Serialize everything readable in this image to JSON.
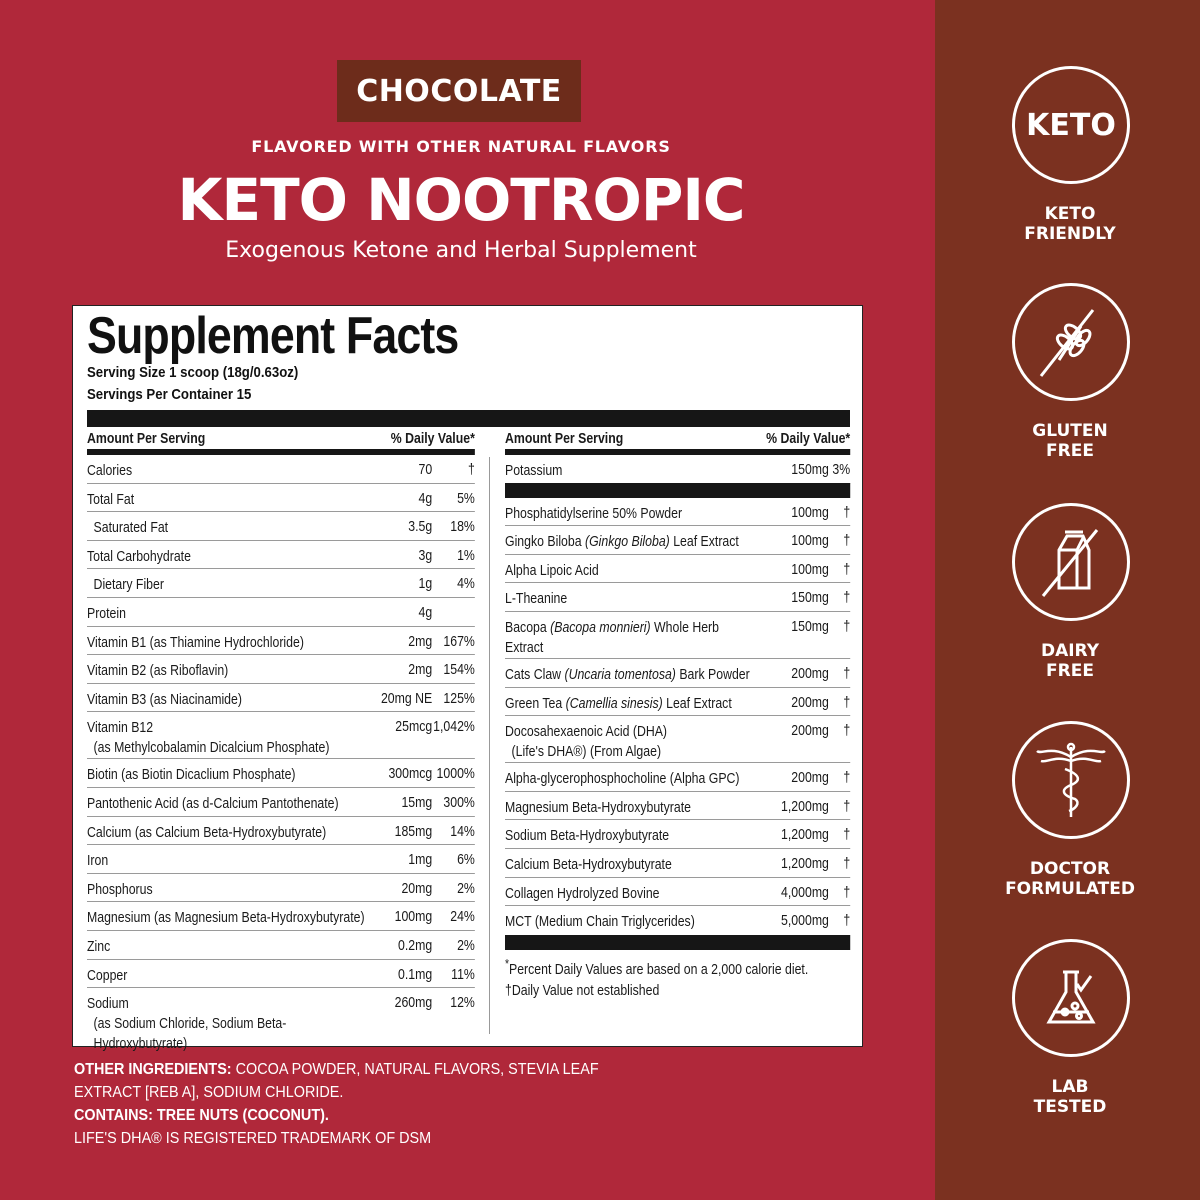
{
  "colors": {
    "background": "#b0283a",
    "sidebar": "#7b3120",
    "badge": "#6d2c1b"
  },
  "header": {
    "flavor": "CHOCOLATE",
    "flavored_note": "FLAVORED WITH OTHER NATURAL FLAVORS",
    "title": "KETO NOOTROPIC",
    "subtitle": "Exogenous Ketone and Herbal Supplement"
  },
  "facts": {
    "title": "Supplement Facts",
    "serving_size": "Serving Size 1 scoop (18g/0.63oz)",
    "servings_per_container": "Servings Per Container 15",
    "header_amount": "Amount Per Serving",
    "header_dv": "% Daily Value*",
    "left": [
      {
        "name": "Calories",
        "amount": "70",
        "dv": "†"
      },
      {
        "name": "Total Fat",
        "amount": "4g",
        "dv": "5%"
      },
      {
        "name": "Saturated Fat",
        "amount": "3.5g",
        "dv": "18%",
        "indent": true
      },
      {
        "name": "Total Carbohydrate",
        "amount": "3g",
        "dv": "1%"
      },
      {
        "name": "Dietary Fiber",
        "amount": "1g",
        "dv": "4%",
        "indent": true
      },
      {
        "name": "Protein",
        "amount": "4g",
        "dv": ""
      },
      {
        "name": "Vitamin B1 (as Thiamine Hydrochloride)",
        "amount": "2mg",
        "dv": "167%"
      },
      {
        "name": "Vitamin B2 (as Riboflavin)",
        "amount": "2mg",
        "dv": "154%"
      },
      {
        "name": "Vitamin B3 (as Niacinamide)",
        "amount": "20mg NE",
        "dv": "125%"
      },
      {
        "name": "Vitamin B12",
        "name2": "(as Methylcobalamin Dicalcium Phosphate)",
        "amount": "25mcg",
        "dv": "1,042%"
      },
      {
        "name": "Biotin (as Biotin Dicaclium Phosphate)",
        "amount": "300mcg",
        "dv": "1000%"
      },
      {
        "name": "Pantothenic Acid (as d-Calcium Pantothenate)",
        "amount": "15mg",
        "dv": "300%"
      },
      {
        "name": "Calcium (as Calcium Beta-Hydroxybutyrate)",
        "amount": "185mg",
        "dv": "14%"
      },
      {
        "name": "Iron",
        "amount": "1mg",
        "dv": "6%"
      },
      {
        "name": "Phosphorus",
        "amount": "20mg",
        "dv": "2%"
      },
      {
        "name": "Magnesium (as Magnesium Beta-Hydroxybutyrate)",
        "amount": "100mg",
        "dv": "24%"
      },
      {
        "name": "Zinc",
        "amount": "0.2mg",
        "dv": "2%"
      },
      {
        "name": "Copper",
        "amount": "0.1mg",
        "dv": "11%"
      },
      {
        "name": "Sodium",
        "name2": "(as Sodium Chloride, Sodium Beta-Hydroxybutyrate)",
        "amount": "260mg",
        "dv": "12%",
        "last": true
      }
    ],
    "right_top": [
      {
        "name": "Potassium",
        "amount": "150mg",
        "dv": "3%"
      }
    ],
    "right": [
      {
        "name": "Phosphatidylserine 50% Powder",
        "amount": "100mg",
        "dv": "†"
      },
      {
        "name": "Gingko Biloba ",
        "italic": "(Ginkgo Biloba)",
        "post": " Leaf Extract",
        "amount": "100mg",
        "dv": "†"
      },
      {
        "name": "Alpha Lipoic Acid",
        "amount": "100mg",
        "dv": "†"
      },
      {
        "name": "L-Theanine",
        "amount": "150mg",
        "dv": "†"
      },
      {
        "name": "Bacopa ",
        "italic": "(Bacopa monnieri)",
        "post": " Whole Herb Extract",
        "amount": "150mg",
        "dv": "†"
      },
      {
        "name": "Cats Claw ",
        "italic": "(Uncaria tomentosa)",
        "post": " Bark Powder",
        "amount": "200mg",
        "dv": "†"
      },
      {
        "name": "Green Tea ",
        "italic": "(Camellia sinesis)",
        "post": " Leaf Extract",
        "amount": "200mg",
        "dv": "†"
      },
      {
        "name": "Docosahexaenoic Acid (DHA)",
        "name2": "(Life's DHA®) (From Algae)",
        "amount": "200mg",
        "dv": "†"
      },
      {
        "name": "Alpha-glycerophosphocholine (Alpha GPC)",
        "amount": "200mg",
        "dv": "†"
      },
      {
        "name": "Magnesium Beta-Hydroxybutyrate",
        "amount": "1,200mg",
        "dv": "†"
      },
      {
        "name": "Sodium Beta-Hydroxybutyrate",
        "amount": "1,200mg",
        "dv": "†"
      },
      {
        "name": "Calcium Beta-Hydroxybutyrate",
        "amount": "1,200mg",
        "dv": "†"
      },
      {
        "name": "Collagen Hydrolyzed Bovine",
        "amount": "4,000mg",
        "dv": "†"
      },
      {
        "name": "MCT (Medium Chain Triglycerides)",
        "amount": "5,000mg",
        "dv": "†",
        "last": true
      }
    ],
    "footnote_star": "Percent Daily Values are based on a 2,000 calorie diet.",
    "footnote_dagger": "Daily Value not established"
  },
  "ingredients": {
    "other_label": "OTHER INGREDIENTS:",
    "other_text": " COCOA POWDER, NATURAL FLAVORS, STEVIA LEAF EXTRACT [REB A], SODIUM CHLORIDE.",
    "contains": "CONTAINS: TREE NUTS (COCONUT).",
    "trademark": "LIFE'S DHA® IS REGISTERED TRADEMARK OF DSM"
  },
  "badges": [
    {
      "icon": "keto-icon",
      "icon_text": "KETO",
      "line1": "KETO",
      "line2": "FRIENDLY"
    },
    {
      "icon": "gluten-free-icon",
      "line1": "GLUTEN",
      "line2": "FREE"
    },
    {
      "icon": "dairy-free-icon",
      "line1": "DAIRY",
      "line2": "FREE"
    },
    {
      "icon": "caduceus-icon",
      "line1": "DOCTOR",
      "line2": "FORMULATED"
    },
    {
      "icon": "lab-flask-icon",
      "line1": "LAB",
      "line2": "TESTED"
    }
  ]
}
